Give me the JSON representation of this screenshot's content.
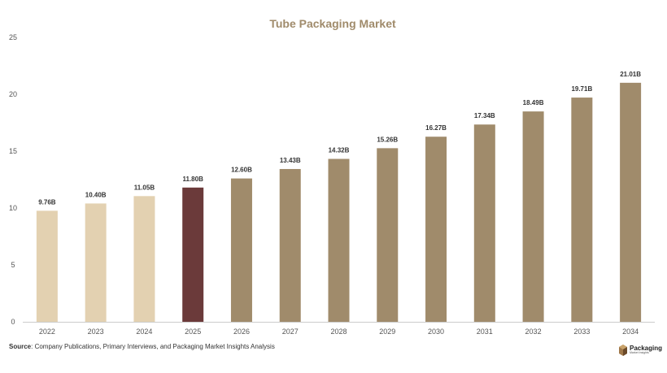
{
  "chart_data": {
    "type": "bar",
    "title": "Tube Packaging Market",
    "xlabel": "",
    "ylabel": "",
    "categories": [
      "2022",
      "2023",
      "2024",
      "2025",
      "2026",
      "2027",
      "2028",
      "2029",
      "2030",
      "2031",
      "2032",
      "2033",
      "2034"
    ],
    "values": [
      9.76,
      10.4,
      11.05,
      11.8,
      12.6,
      13.43,
      14.32,
      15.26,
      16.27,
      17.34,
      18.49,
      19.71,
      21.01
    ],
    "data_labels": [
      "9.76B",
      "10.40B",
      "11.05B",
      "11.80B",
      "12.60B",
      "13.43B",
      "14.32B",
      "15.26B",
      "16.27B",
      "17.34B",
      "18.49B",
      "19.71B",
      "21.01B"
    ],
    "ylim": [
      0,
      25
    ],
    "yticks": [
      0,
      5,
      10,
      15,
      20,
      25
    ],
    "grid": false,
    "colors": {
      "historical": "#e3d1b1",
      "base_year": "#6b3a3a",
      "forecast": "#a08b6b"
    },
    "bar_groups": [
      "historical",
      "historical",
      "historical",
      "base_year",
      "forecast",
      "forecast",
      "forecast",
      "forecast",
      "forecast",
      "forecast",
      "forecast",
      "forecast",
      "forecast"
    ]
  },
  "footer": {
    "source_label": "Source",
    "source_text": ": Company Publications, Primary Interviews, and Packaging Market Insights Analysis"
  },
  "logo": {
    "name": "Packaging",
    "tagline": "Market Insights",
    "icon": "box-icon"
  }
}
